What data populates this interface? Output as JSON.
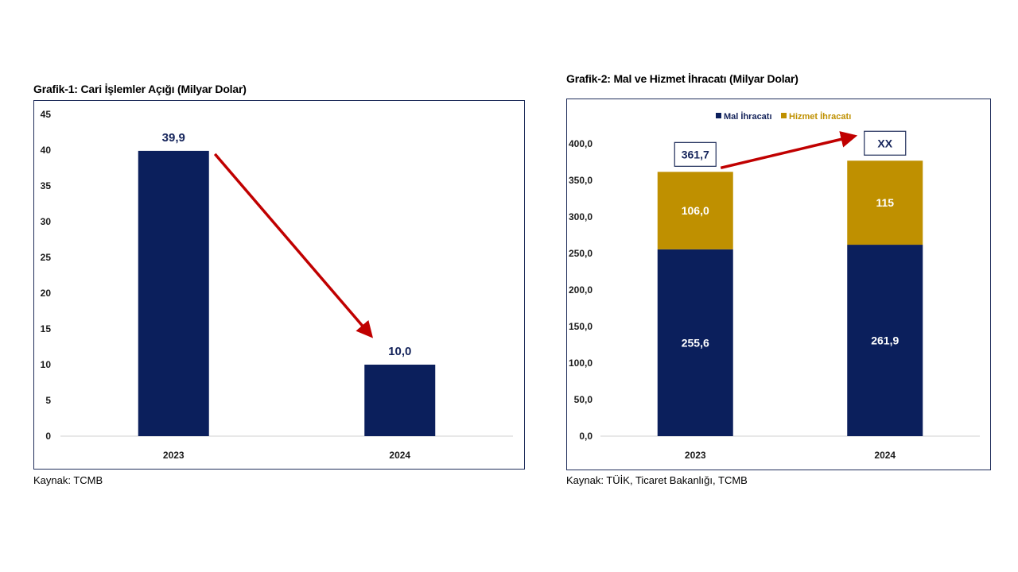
{
  "colors": {
    "navy": "#0b1f5c",
    "gold": "#bf9000",
    "arrow": "#c00000",
    "frame": "#1f2d5a"
  },
  "chart1": {
    "title": "Grafik-1: Cari İşlemler Açığı (Milyar Dolar)",
    "source": "Kaynak: TCMB"
  },
  "chart2": {
    "title": "Grafik-2: Mal ve Hizmet İhracatı (Milyar Dolar)",
    "source": "Kaynak: TÜİK, Ticaret Bakanlığı, TCMB"
  },
  "chart_data": [
    {
      "type": "bar",
      "title": "Grafik-1: Cari İşlemler Açığı (Milyar Dolar)",
      "categories": [
        "2023",
        "2024"
      ],
      "values": [
        39.9,
        10.0
      ],
      "value_labels": [
        "39,9",
        "10,0"
      ],
      "ylim": [
        0,
        45
      ],
      "yticks": [
        0,
        5,
        10,
        15,
        20,
        25,
        30,
        35,
        40,
        45
      ],
      "ytick_labels": [
        "0",
        "5",
        "10",
        "15",
        "20",
        "25",
        "30",
        "35",
        "40",
        "45"
      ],
      "grid": false,
      "annotation": "arrow from 2023 bar to 2024 bar"
    },
    {
      "type": "bar",
      "stacked": true,
      "title": "Grafik-2: Mal ve Hizmet İhracatı (Milyar Dolar)",
      "categories": [
        "2023",
        "2024"
      ],
      "series": [
        {
          "name": "Mal İhracatı",
          "values": [
            255.6,
            261.9
          ],
          "labels": [
            "255,6",
            "261,9"
          ],
          "color": "#0b1f5c"
        },
        {
          "name": "Hizmet İhracatı",
          "values": [
            106.0,
            115
          ],
          "labels": [
            "106,0",
            "115"
          ],
          "color": "#bf9000"
        }
      ],
      "totals": [
        "361,7",
        "XX"
      ],
      "ylim": [
        0,
        400
      ],
      "yticks": [
        0,
        50,
        100,
        150,
        200,
        250,
        300,
        350,
        400
      ],
      "ytick_labels": [
        "0,0",
        "50,0",
        "100,0",
        "150,0",
        "200,0",
        "250,0",
        "300,0",
        "350,0",
        "400,0"
      ],
      "legend": "top",
      "grid": false,
      "annotation": "arrow from 2023 total to 2024 total"
    }
  ]
}
